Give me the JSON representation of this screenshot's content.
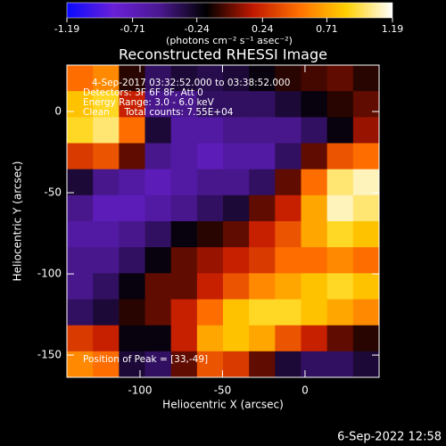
{
  "chart_data": {
    "type": "heatmap",
    "title": "Reconstructed RHESSI Image",
    "xlabel": "Heliocentric X (arcsec)",
    "ylabel": "Heliocentric Y (arcsec)",
    "annotations": [
      "4-Sep-2017 03:32:52.000 to 03:38:52.000",
      "Detectors: 3F 6F 8F, Att 0",
      "Energy Range: 3.0 - 6.0 keV",
      "Clean     Total counts: 7.55E+04"
    ],
    "peak_label": "Position of Peak = [33,-49]",
    "footer": "6-Sep-2022 12:58",
    "colorbar_label": "(photons cm⁻² s⁻¹ asec⁻²)",
    "clim": [
      -1.19,
      1.19
    ],
    "cticks": [
      -1.19,
      -0.71,
      -0.24,
      0.24,
      0.71,
      1.19
    ],
    "colorscale": [
      "#0a0aff",
      "#6a20d8",
      "#4a1890",
      "#000000",
      "#c01800",
      "#ff7000",
      "#ffd000",
      "#ffffff"
    ],
    "xlim": [
      -144.3,
      44.9
    ],
    "ylim": [
      -163.7,
      28.6
    ],
    "xticks": [
      -100,
      -50,
      0
    ],
    "yticks": [
      0,
      -50,
      -100,
      -150
    ],
    "z": [
      [
        0.5,
        0.6,
        -0.1,
        -0.4,
        -0.3,
        -0.35,
        -0.3,
        -0.2,
        -0.1,
        -0.05,
        0.0,
        -0.1
      ],
      [
        0.8,
        0.9,
        0.2,
        -0.5,
        -0.5,
        -0.4,
        -0.4,
        -0.4,
        -0.3,
        -0.2,
        -0.1,
        0.0
      ],
      [
        0.9,
        1.0,
        0.5,
        -0.3,
        -0.6,
        -0.6,
        -0.5,
        -0.5,
        -0.5,
        -0.4,
        -0.2,
        0.1
      ],
      [
        0.3,
        0.4,
        0.0,
        -0.5,
        -0.6,
        -0.7,
        -0.6,
        -0.6,
        -0.4,
        0.0,
        0.4,
        0.5
      ],
      [
        -0.3,
        -0.5,
        -0.6,
        -0.7,
        -0.6,
        -0.5,
        -0.5,
        -0.4,
        0.0,
        0.5,
        1.0,
        1.1
      ],
      [
        -0.5,
        -0.7,
        -0.7,
        -0.6,
        -0.5,
        -0.4,
        -0.3,
        0.0,
        0.2,
        0.7,
        1.1,
        1.0
      ],
      [
        -0.6,
        -0.6,
        -0.5,
        -0.4,
        -0.2,
        -0.1,
        0.0,
        0.2,
        0.4,
        0.7,
        0.9,
        0.8
      ],
      [
        -0.5,
        -0.5,
        -0.4,
        -0.2,
        0.0,
        0.1,
        0.2,
        0.3,
        0.5,
        0.5,
        0.6,
        0.5
      ],
      [
        -0.5,
        -0.4,
        -0.2,
        0.0,
        0.0,
        0.2,
        0.4,
        0.6,
        0.7,
        0.8,
        0.9,
        0.8
      ],
      [
        -0.4,
        -0.3,
        -0.1,
        0.0,
        0.2,
        0.5,
        0.8,
        0.9,
        0.9,
        0.8,
        0.7,
        0.6
      ],
      [
        0.3,
        0.2,
        -0.2,
        -0.2,
        0.2,
        0.7,
        0.8,
        0.7,
        0.4,
        0.2,
        0.0,
        -0.1
      ],
      [
        0.6,
        0.5,
        -0.3,
        -0.4,
        0.0,
        0.4,
        0.3,
        0.0,
        -0.3,
        -0.4,
        -0.4,
        -0.3
      ]
    ]
  }
}
